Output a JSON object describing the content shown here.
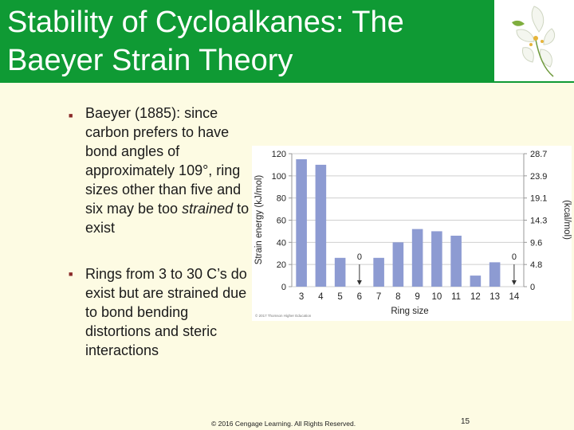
{
  "slide": {
    "title": "Stability of Cycloalkanes: The Baeyer Strain Theory",
    "bullets": [
      {
        "pre": "Baeyer (1885): since carbon prefers to have bond angles of approximately 109°, ring sizes other than five and six may be too ",
        "emph": "strained",
        "post": " to exist"
      },
      {
        "pre": "Rings from 3 to 30 C’s do exist but are strained due to bond bending distortions and steric interactions",
        "emph": "",
        "post": ""
      }
    ],
    "footer": "© 2016 Cengage Learning. All Rights Reserved.",
    "page_number": "15",
    "figure_credit": "© 2017 Thomson Higher Education",
    "colors": {
      "title_bar": "#0f9a34",
      "background": "#fdfbe3",
      "bar_fill": "#8d9bd2"
    }
  },
  "chart_data": {
    "type": "bar",
    "title": "",
    "xlabel": "Ring size",
    "ylabel": "Strain energy (kJ/mol)",
    "y2label": "(kcal/mol)",
    "categories": [
      "3",
      "4",
      "5",
      "6",
      "7",
      "8",
      "9",
      "10",
      "11",
      "12",
      "13",
      "14"
    ],
    "values": [
      115,
      110,
      26,
      0,
      26,
      40,
      52,
      50,
      46,
      10,
      22,
      0
    ],
    "ylim": [
      0,
      120
    ],
    "yticks": [
      "0",
      "20",
      "40",
      "60",
      "80",
      "100",
      "120"
    ],
    "y2ticks": [
      "0",
      "4.8",
      "9.6",
      "14.3",
      "19.1",
      "23.9",
      "28.7"
    ],
    "zero_annotations": [
      {
        "category": "6",
        "label": "0"
      },
      {
        "category": "14",
        "label": "0"
      }
    ],
    "grid": true
  }
}
